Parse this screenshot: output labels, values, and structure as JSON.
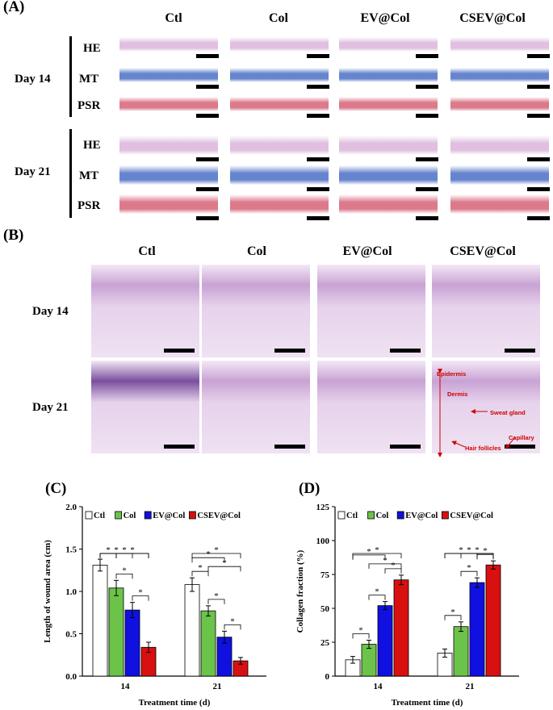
{
  "panelA": {
    "label": "(A)",
    "columns": [
      "Ctl",
      "Col",
      "EV@Col",
      "CSEV@Col"
    ],
    "groups": [
      {
        "day": "Day 14",
        "stains": [
          "HE",
          "MT",
          "PSR"
        ]
      },
      {
        "day": "Day 21",
        "stains": [
          "HE",
          "MT",
          "PSR"
        ]
      }
    ]
  },
  "panelB": {
    "label": "(B)",
    "columns": [
      "Ctl",
      "Col",
      "EV@Col",
      "CSEV@Col"
    ],
    "rows": [
      "Day 14",
      "Day 21"
    ],
    "annotations": {
      "epidermis": "Epidermis",
      "dermis": "Dermis",
      "sweat_gland": "Sweat gland",
      "capillary": "Capillary",
      "hair_follicles": "Hair follicles"
    }
  },
  "colors": {
    "Ctl": "#ffffff",
    "Col": "#6cc34a",
    "EV@Col": "#1010e0",
    "CSEV@Col": "#d81010",
    "HE": "#dcb8dc",
    "MT": "#5577c8",
    "PSR": "#d86a7e"
  },
  "chart_data": [
    {
      "panel_label": "(C)",
      "type": "bar",
      "categories": [
        "14",
        "21"
      ],
      "series": [
        {
          "name": "Ctl",
          "values": [
            1.31,
            1.08
          ],
          "errors": [
            0.07,
            0.08
          ]
        },
        {
          "name": "Col",
          "values": [
            1.04,
            0.77
          ],
          "errors": [
            0.09,
            0.06
          ]
        },
        {
          "name": "EV@Col",
          "values": [
            0.78,
            0.46
          ],
          "errors": [
            0.09,
            0.07
          ]
        },
        {
          "name": "CSEV@Col",
          "values": [
            0.34,
            0.18
          ],
          "errors": [
            0.06,
            0.04
          ]
        }
      ],
      "xlabel": "Treatment time (d)",
      "ylabel": "Length of wound area (cm)",
      "ylim": [
        0.0,
        2.0
      ],
      "yticks": [
        "0.0",
        "0.5",
        "1.0",
        "1.5",
        "2.0"
      ],
      "significance": [
        {
          "group": 0,
          "from": 0,
          "to": 1,
          "text": "*"
        },
        {
          "group": 0,
          "from": 0,
          "to": 2,
          "text": "*"
        },
        {
          "group": 0,
          "from": 0,
          "to": 3,
          "text": "*"
        },
        {
          "group": 0,
          "from": 1,
          "to": 2,
          "text": "*"
        },
        {
          "group": 0,
          "from": 1,
          "to": 3,
          "text": "*"
        },
        {
          "group": 0,
          "from": 2,
          "to": 3,
          "text": "*"
        },
        {
          "group": 1,
          "from": 0,
          "to": 1,
          "text": "*"
        },
        {
          "group": 1,
          "from": 0,
          "to": 2,
          "text": "*"
        },
        {
          "group": 1,
          "from": 0,
          "to": 3,
          "text": "*"
        },
        {
          "group": 1,
          "from": 1,
          "to": 2,
          "text": "*"
        },
        {
          "group": 1,
          "from": 1,
          "to": 3,
          "text": "*"
        },
        {
          "group": 1,
          "from": 2,
          "to": 3,
          "text": "*"
        }
      ],
      "legend": "top"
    },
    {
      "panel_label": "(D)",
      "type": "bar",
      "categories": [
        "14",
        "21"
      ],
      "series": [
        {
          "name": "Ctl",
          "values": [
            12,
            17
          ],
          "errors": [
            2.5,
            3
          ]
        },
        {
          "name": "Col",
          "values": [
            23.5,
            36.5
          ],
          "errors": [
            3,
            3.5
          ]
        },
        {
          "name": "EV@Col",
          "values": [
            52,
            69
          ],
          "errors": [
            3,
            3.5
          ]
        },
        {
          "name": "CSEV@Col",
          "values": [
            71,
            82
          ],
          "errors": [
            3.5,
            3
          ]
        }
      ],
      "xlabel": "Treatment time (d)",
      "ylabel": "Collagen fraction (%)",
      "ylim": [
        0,
        125
      ],
      "yticks": [
        "0",
        "25",
        "50",
        "75",
        "100",
        "125"
      ],
      "significance": [
        {
          "group": 0,
          "from": 0,
          "to": 1,
          "text": "*"
        },
        {
          "group": 0,
          "from": 0,
          "to": 2,
          "text": "*"
        },
        {
          "group": 0,
          "from": 0,
          "to": 3,
          "text": "*"
        },
        {
          "group": 0,
          "from": 1,
          "to": 2,
          "text": "*"
        },
        {
          "group": 0,
          "from": 1,
          "to": 3,
          "text": "*"
        },
        {
          "group": 0,
          "from": 2,
          "to": 3,
          "text": "*"
        },
        {
          "group": 1,
          "from": 0,
          "to": 1,
          "text": "*"
        },
        {
          "group": 1,
          "from": 0,
          "to": 2,
          "text": "*"
        },
        {
          "group": 1,
          "from": 0,
          "to": 3,
          "text": "*"
        },
        {
          "group": 1,
          "from": 1,
          "to": 2,
          "text": "*"
        },
        {
          "group": 1,
          "from": 1,
          "to": 3,
          "text": "*"
        },
        {
          "group": 1,
          "from": 2,
          "to": 3,
          "text": "*"
        }
      ],
      "legend": "top"
    }
  ]
}
